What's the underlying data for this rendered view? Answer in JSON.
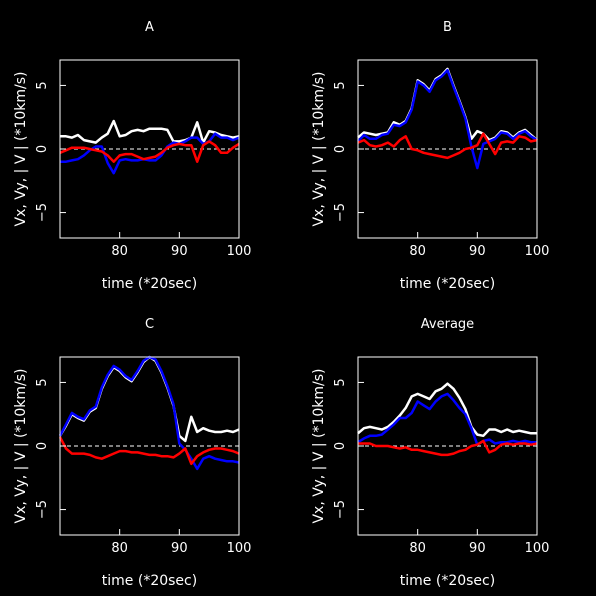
{
  "chart_data": [
    {
      "type": "line",
      "title": "A",
      "xlabel": "time (*20sec)",
      "ylabel": "Vx, Vy, | V | (*10km/s)",
      "xlim": [
        70,
        100
      ],
      "ylim": [
        -7,
        7
      ],
      "xticks": [
        80,
        90,
        100
      ],
      "yticks": [
        -5,
        0,
        5
      ],
      "zero_line": "dashed",
      "grid": false,
      "x": [
        70,
        71,
        72,
        73,
        74,
        75,
        76,
        77,
        78,
        79,
        80,
        81,
        82,
        83,
        84,
        85,
        86,
        87,
        88,
        89,
        90,
        91,
        92,
        93,
        94,
        95,
        96,
        97,
        98,
        99,
        100
      ],
      "series": [
        {
          "color": "#ffffff",
          "values": [
            1.0,
            1.0,
            0.9,
            1.1,
            0.7,
            0.6,
            0.5,
            0.9,
            1.2,
            2.2,
            1.0,
            1.1,
            1.4,
            1.5,
            1.4,
            1.6,
            1.6,
            1.6,
            1.5,
            0.6,
            0.6,
            0.7,
            0.9,
            2.1,
            0.5,
            1.4,
            1.3,
            1.1,
            1.0,
            0.9,
            1.0
          ]
        },
        {
          "color": "#0000ff",
          "values": [
            -1.0,
            -1.0,
            -0.9,
            -0.8,
            -0.5,
            -0.1,
            0.2,
            0.2,
            -1.1,
            -1.9,
            -0.9,
            -0.8,
            -0.9,
            -0.9,
            -0.8,
            -0.9,
            -0.9,
            -0.5,
            0.2,
            0.5,
            0.4,
            0.6,
            0.9,
            0.9,
            0.4,
            0.6,
            1.2,
            0.9,
            0.9,
            0.7,
            0.9
          ]
        },
        {
          "color": "#ff0000",
          "values": [
            -0.3,
            -0.1,
            0.1,
            0.1,
            0.1,
            0.0,
            -0.1,
            -0.2,
            -0.5,
            -1.0,
            -0.5,
            -0.4,
            -0.4,
            -0.6,
            -0.8,
            -0.7,
            -0.6,
            -0.3,
            0.1,
            0.3,
            0.4,
            0.3,
            0.3,
            -1.0,
            0.3,
            0.6,
            0.3,
            -0.3,
            -0.3,
            0.1,
            0.4
          ]
        }
      ]
    },
    {
      "type": "line",
      "title": "B",
      "xlabel": "time (*20sec)",
      "ylabel": "Vx, Vy, | V | (*10km/s)",
      "xlim": [
        70,
        100
      ],
      "ylim": [
        -7,
        7
      ],
      "xticks": [
        80,
        90,
        100
      ],
      "yticks": [
        -5,
        0,
        5
      ],
      "zero_line": "dashed",
      "grid": false,
      "x": [
        70,
        71,
        72,
        73,
        74,
        75,
        76,
        77,
        78,
        79,
        80,
        81,
        82,
        83,
        84,
        85,
        86,
        87,
        88,
        89,
        90,
        91,
        92,
        93,
        94,
        95,
        96,
        97,
        98,
        99,
        100
      ],
      "series": [
        {
          "color": "#ffffff",
          "values": [
            0.9,
            1.3,
            1.2,
            1.1,
            1.2,
            1.3,
            2.1,
            1.9,
            2.2,
            3.2,
            5.4,
            5.1,
            4.6,
            5.5,
            5.8,
            6.3,
            5.0,
            3.8,
            2.5,
            0.8,
            1.4,
            1.2,
            0.7,
            0.9,
            1.4,
            1.3,
            0.9,
            1.3,
            1.5,
            1.1,
            0.7
          ]
        },
        {
          "color": "#0000ff",
          "values": [
            0.6,
            1.1,
            0.8,
            0.8,
            1.1,
            1.2,
            1.9,
            1.8,
            2.1,
            3.1,
            5.3,
            5.0,
            4.5,
            5.4,
            5.7,
            6.2,
            4.9,
            3.7,
            2.4,
            0.2,
            -1.5,
            0.4,
            0.6,
            0.8,
            1.3,
            1.2,
            0.8,
            1.2,
            1.4,
            1.0,
            0.7
          ]
        },
        {
          "color": "#ff0000",
          "values": [
            0.5,
            0.7,
            0.3,
            0.2,
            0.3,
            0.5,
            0.2,
            0.7,
            1.0,
            0.0,
            -0.1,
            -0.3,
            -0.4,
            -0.5,
            -0.6,
            -0.7,
            -0.5,
            -0.3,
            0.0,
            0.1,
            0.3,
            1.2,
            0.4,
            -0.4,
            0.5,
            0.6,
            0.5,
            1.0,
            0.9,
            0.6,
            0.7
          ]
        }
      ]
    },
    {
      "type": "line",
      "title": "C",
      "xlabel": "time (*20sec)",
      "ylabel": "Vx, Vy, | V | (*10km/s)",
      "xlim": [
        70,
        100
      ],
      "ylim": [
        -7,
        7
      ],
      "xticks": [
        80,
        90,
        100
      ],
      "yticks": [
        -5,
        0,
        5
      ],
      "zero_line": "dashed",
      "grid": false,
      "x": [
        70,
        71,
        72,
        73,
        74,
        75,
        76,
        77,
        78,
        79,
        80,
        81,
        82,
        83,
        84,
        85,
        86,
        87,
        88,
        89,
        90,
        91,
        92,
        93,
        94,
        95,
        96,
        97,
        98,
        99,
        100
      ],
      "series": [
        {
          "color": "#ffffff",
          "values": [
            0.8,
            1.6,
            2.5,
            2.2,
            2.0,
            2.7,
            3.0,
            4.5,
            5.5,
            6.2,
            5.9,
            5.4,
            5.1,
            5.8,
            6.6,
            7.0,
            6.7,
            5.8,
            4.6,
            3.2,
            0.8,
            0.4,
            2.3,
            1.1,
            1.4,
            1.2,
            1.1,
            1.1,
            1.2,
            1.1,
            1.3
          ]
        },
        {
          "color": "#0000ff",
          "values": [
            0.8,
            1.7,
            2.6,
            2.3,
            2.1,
            2.8,
            3.1,
            4.6,
            5.6,
            6.3,
            6.0,
            5.5,
            5.2,
            5.9,
            6.7,
            7.0,
            6.8,
            5.9,
            4.7,
            3.3,
            0.2,
            -0.3,
            -1.0,
            -1.8,
            -1.0,
            -0.8,
            -1.0,
            -1.1,
            -1.2,
            -1.2,
            -1.3
          ]
        },
        {
          "color": "#ff0000",
          "values": [
            0.7,
            -0.2,
            -0.6,
            -0.6,
            -0.6,
            -0.7,
            -0.9,
            -1.0,
            -0.8,
            -0.6,
            -0.4,
            -0.4,
            -0.5,
            -0.5,
            -0.6,
            -0.7,
            -0.7,
            -0.8,
            -0.8,
            -0.9,
            -0.6,
            -0.2,
            -1.4,
            -0.8,
            -0.5,
            -0.3,
            -0.2,
            -0.2,
            -0.3,
            -0.4,
            -0.6
          ]
        }
      ]
    },
    {
      "type": "line",
      "title": "Average",
      "xlabel": "time (*20sec)",
      "ylabel": "Vx, Vy, | V | (*10km/s)",
      "xlim": [
        70,
        100
      ],
      "ylim": [
        -7,
        7
      ],
      "xticks": [
        80,
        90,
        100
      ],
      "yticks": [
        -5,
        0,
        5
      ],
      "zero_line": "dashed",
      "grid": false,
      "x": [
        70,
        71,
        72,
        73,
        74,
        75,
        76,
        77,
        78,
        79,
        80,
        81,
        82,
        83,
        84,
        85,
        86,
        87,
        88,
        89,
        90,
        91,
        92,
        93,
        94,
        95,
        96,
        97,
        98,
        99,
        100
      ],
      "series": [
        {
          "color": "#ffffff",
          "values": [
            1.0,
            1.4,
            1.5,
            1.4,
            1.3,
            1.5,
            1.9,
            2.4,
            3.0,
            3.9,
            4.1,
            3.9,
            3.7,
            4.3,
            4.5,
            4.9,
            4.5,
            3.8,
            2.9,
            1.5,
            0.9,
            0.8,
            1.3,
            1.3,
            1.1,
            1.3,
            1.1,
            1.2,
            1.1,
            1.0,
            1.0
          ]
        },
        {
          "color": "#0000ff",
          "values": [
            0.3,
            0.6,
            0.8,
            0.8,
            0.9,
            1.3,
            1.7,
            2.2,
            2.2,
            2.6,
            3.5,
            3.2,
            2.9,
            3.5,
            3.9,
            4.1,
            3.6,
            3.0,
            2.5,
            1.4,
            0.1,
            0.4,
            0.5,
            0.2,
            0.3,
            0.3,
            0.4,
            0.3,
            0.4,
            0.3,
            0.3
          ]
        },
        {
          "color": "#ff0000",
          "values": [
            0.2,
            0.2,
            0.2,
            0.0,
            0.0,
            0.0,
            -0.1,
            -0.2,
            -0.1,
            -0.3,
            -0.3,
            -0.4,
            -0.5,
            -0.6,
            -0.7,
            -0.7,
            -0.6,
            -0.4,
            -0.3,
            0.0,
            0.1,
            0.4,
            -0.5,
            -0.3,
            0.1,
            0.2,
            0.1,
            0.2,
            0.2,
            0.1,
            0.2
          ]
        }
      ]
    }
  ]
}
